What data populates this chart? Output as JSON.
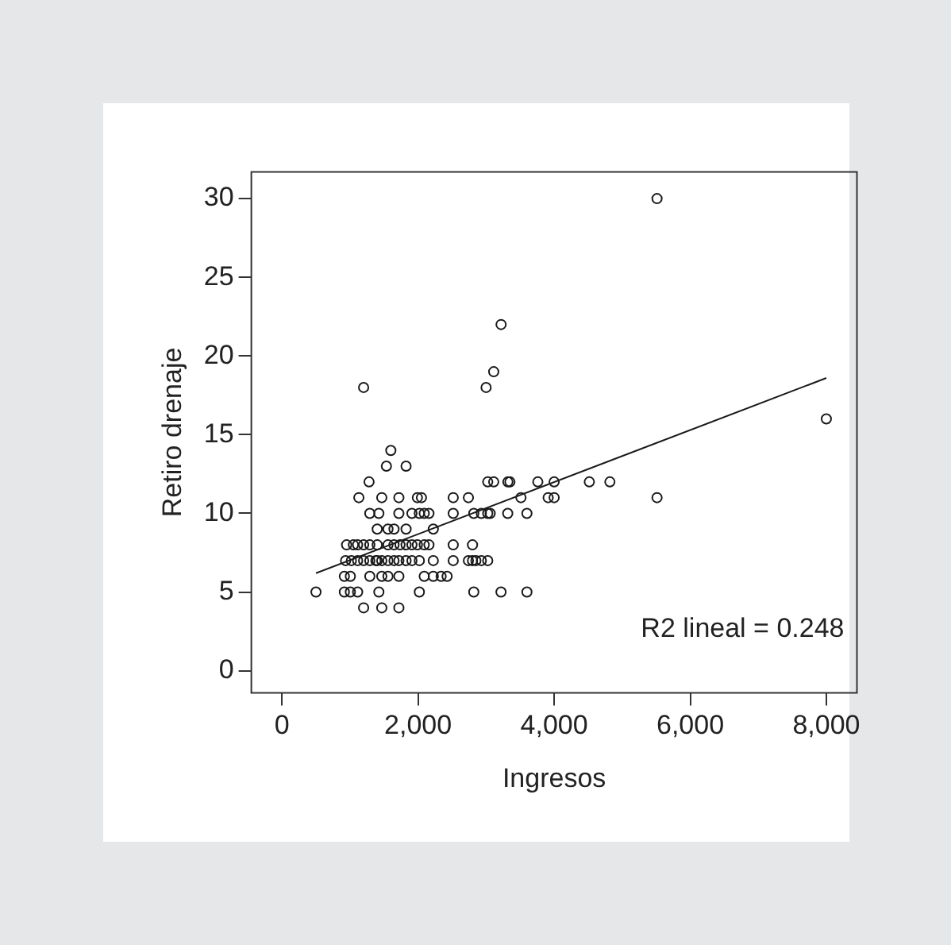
{
  "chart_data": {
    "type": "scatter",
    "xlabel": "Ingresos",
    "ylabel": "Retiro drenaje",
    "xlim": [
      -450,
      8450
    ],
    "ylim": [
      -1.4,
      31.7
    ],
    "xticks": [
      0,
      {
        "value": 2000,
        "label": "2,000"
      },
      {
        "value": 4000,
        "label": "4,000"
      },
      {
        "value": 6000,
        "label": "6,000"
      },
      {
        "value": 8000,
        "label": "8,000"
      }
    ],
    "yticks": [
      0,
      5,
      10,
      15,
      20,
      25,
      30
    ],
    "grid": false,
    "legend": false,
    "annotations": [
      "R2 lineal = 0.248"
    ],
    "series": [
      {
        "type": "scatter",
        "marker": "circle",
        "color": "#1a1a1a",
        "x": [
          1200,
          1467,
          1718,
          500,
          917,
          1005,
          1112,
          1424,
          2019,
          2819,
          3219,
          3600,
          917,
          1005,
          1291,
          1467,
          1558,
          1718,
          2091,
          2224,
          2339,
          2427,
          935,
          1020,
          1112,
          1200,
          1291,
          1380,
          1400,
          1467,
          1558,
          1647,
          1718,
          1824,
          1910,
          2019,
          2224,
          2517,
          2740,
          2800,
          2850,
          2930,
          3024,
          950,
          1050,
          1112,
          1200,
          1291,
          1400,
          1558,
          1647,
          1735,
          1824,
          1910,
          1990,
          2091,
          2160,
          2517,
          2800,
          1400,
          1558,
          1647,
          1824,
          2224,
          1291,
          1424,
          1718,
          1910,
          2019,
          2091,
          2160,
          2517,
          2819,
          2930,
          3024,
          3060,
          3318,
          3600,
          1130,
          1467,
          1718,
          1990,
          2050,
          2517,
          2740,
          3512,
          3912,
          4000,
          5512,
          1280,
          3024,
          3112,
          3320,
          3350,
          3760,
          4000,
          4517,
          4819,
          1535,
          1824,
          1600,
          1200,
          3000,
          3112,
          3220,
          5512,
          8000
        ],
        "values": [
          4,
          4,
          4,
          5,
          5,
          5,
          5,
          5,
          5,
          5,
          5,
          5,
          6,
          6,
          6,
          6,
          6,
          6,
          6,
          6,
          6,
          6,
          7,
          7,
          7,
          7,
          7,
          7,
          7,
          7,
          7,
          7,
          7,
          7,
          7,
          7,
          7,
          7,
          7,
          7,
          7,
          7,
          7,
          8,
          8,
          8,
          8,
          8,
          8,
          8,
          8,
          8,
          8,
          8,
          8,
          8,
          8,
          8,
          8,
          9,
          9,
          9,
          9,
          9,
          10,
          10,
          10,
          10,
          10,
          10,
          10,
          10,
          10,
          10,
          10,
          10,
          10,
          10,
          11,
          11,
          11,
          11,
          11,
          11,
          11,
          11,
          11,
          11,
          11,
          12,
          12,
          12,
          12,
          12,
          12,
          12,
          12,
          12,
          13,
          13,
          14,
          18,
          18,
          19,
          22,
          30,
          16
        ]
      },
      {
        "type": "line",
        "color": "#1a1a1a",
        "x": [
          500,
          8000
        ],
        "values": [
          6.2,
          18.6
        ]
      }
    ]
  }
}
